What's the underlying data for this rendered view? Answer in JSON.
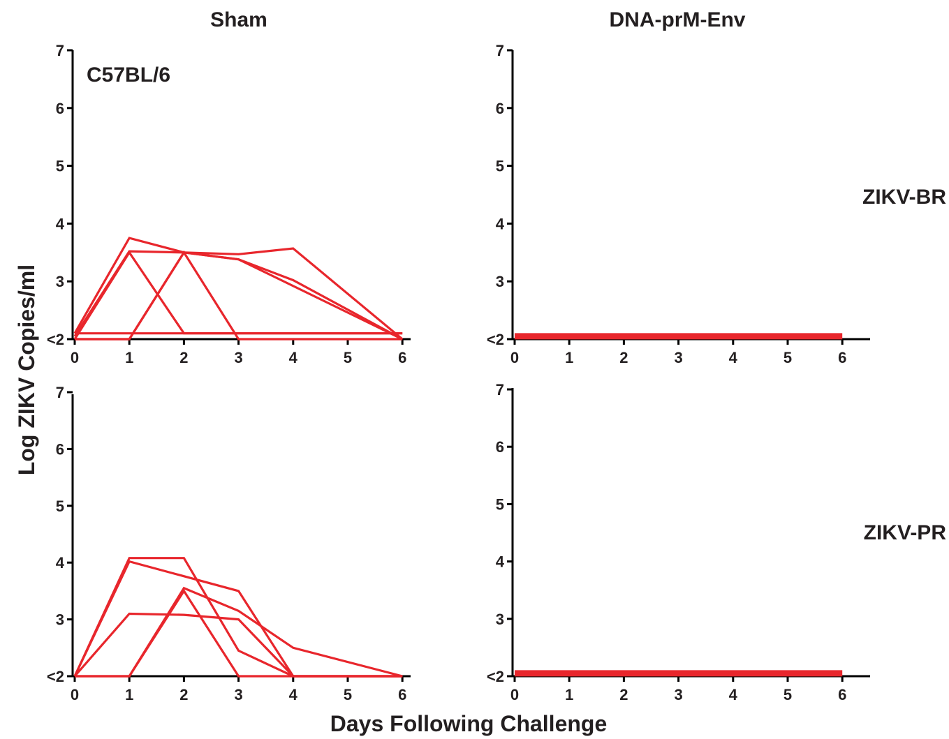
{
  "figure": {
    "column_titles": [
      "Sham",
      "DNA-prM-Env"
    ],
    "row_labels": [
      "ZIKV-BR",
      "ZIKV-PR"
    ],
    "y_axis_title": "Log ZIKV Copies/ml",
    "x_axis_title": "Days Following Challenge",
    "strain_label": "C57BL/6",
    "line_color": "#e8262c",
    "axis_color": "#000000",
    "text_color": "#231f20"
  },
  "chart_data": [
    {
      "type": "line",
      "title": "Sham",
      "row": "ZIKV-BR",
      "annotation": "C57BL/6",
      "x_ticks": [
        "0",
        "1",
        "2",
        "3",
        "4",
        "5",
        "6"
      ],
      "y_ticks": [
        "<2",
        "3",
        "4",
        "5",
        "6",
        "7"
      ],
      "xlim": [
        0,
        6.5
      ],
      "ylim": [
        2,
        7
      ],
      "series": [
        {
          "x": [
            0,
            1,
            2,
            3,
            6
          ],
          "y": [
            2.1,
            3.75,
            3.5,
            3.38,
            2.0
          ]
        },
        {
          "x": [
            0,
            1,
            2,
            3,
            4,
            6
          ],
          "y": [
            2.05,
            3.52,
            3.5,
            3.47,
            3.57,
            2.0
          ]
        },
        {
          "x": [
            0,
            1,
            2,
            6
          ],
          "y": [
            2.0,
            3.5,
            2.1,
            2.1
          ]
        },
        {
          "x": [
            0,
            1,
            2,
            3,
            6
          ],
          "y": [
            2.0,
            2.0,
            3.5,
            2.0,
            2.0
          ]
        },
        {
          "x": [
            0,
            6
          ],
          "y": [
            2.1,
            2.1
          ]
        },
        {
          "x": [
            0,
            1,
            2,
            3,
            4,
            6
          ],
          "y": [
            2.0,
            2.0,
            3.5,
            3.38,
            3.02,
            2.0
          ]
        }
      ]
    },
    {
      "type": "line",
      "title": "DNA-prM-Env",
      "row": "ZIKV-BR",
      "x_ticks": [
        "0",
        "1",
        "2",
        "3",
        "4",
        "5",
        "6"
      ],
      "y_ticks": [
        "<2",
        "3",
        "4",
        "5",
        "6",
        "7"
      ],
      "xlim": [
        0,
        6.5
      ],
      "ylim": [
        2,
        7
      ],
      "series": [
        {
          "x": [
            0,
            6
          ],
          "y": [
            2.05,
            2.05
          ]
        }
      ]
    },
    {
      "type": "line",
      "title": "Sham",
      "row": "ZIKV-PR",
      "x_ticks": [
        "0",
        "1",
        "2",
        "3",
        "4",
        "5",
        "6"
      ],
      "y_ticks": [
        "<2",
        "3",
        "4",
        "5",
        "6",
        "7"
      ],
      "xlim": [
        0,
        6.5
      ],
      "ylim": [
        2,
        7
      ],
      "series": [
        {
          "x": [
            0,
            1,
            2,
            3,
            4,
            6
          ],
          "y": [
            2.0,
            4.08,
            4.08,
            2.45,
            2.0,
            2.0
          ]
        },
        {
          "x": [
            0,
            1,
            3,
            4,
            6
          ],
          "y": [
            2.0,
            4.02,
            3.5,
            2.0,
            2.0
          ]
        },
        {
          "x": [
            0,
            1,
            2,
            3,
            4,
            6
          ],
          "y": [
            2.0,
            3.1,
            3.08,
            3.0,
            2.0,
            2.0
          ]
        },
        {
          "x": [
            0,
            1,
            2,
            3,
            4,
            6
          ],
          "y": [
            2.0,
            2.0,
            3.55,
            3.15,
            2.5,
            2.0
          ]
        },
        {
          "x": [
            0,
            1,
            2,
            3,
            6
          ],
          "y": [
            2.0,
            2.0,
            3.5,
            2.0,
            2.0
          ]
        }
      ]
    },
    {
      "type": "line",
      "title": "DNA-prM-Env",
      "row": "ZIKV-PR",
      "x_ticks": [
        "0",
        "1",
        "2",
        "3",
        "4",
        "5",
        "6"
      ],
      "y_ticks": [
        "<2",
        "3",
        "4",
        "5",
        "6",
        "7"
      ],
      "xlim": [
        0,
        6.5
      ],
      "ylim": [
        2,
        7
      ],
      "series": [
        {
          "x": [
            0,
            6
          ],
          "y": [
            2.05,
            2.05
          ]
        }
      ]
    }
  ]
}
